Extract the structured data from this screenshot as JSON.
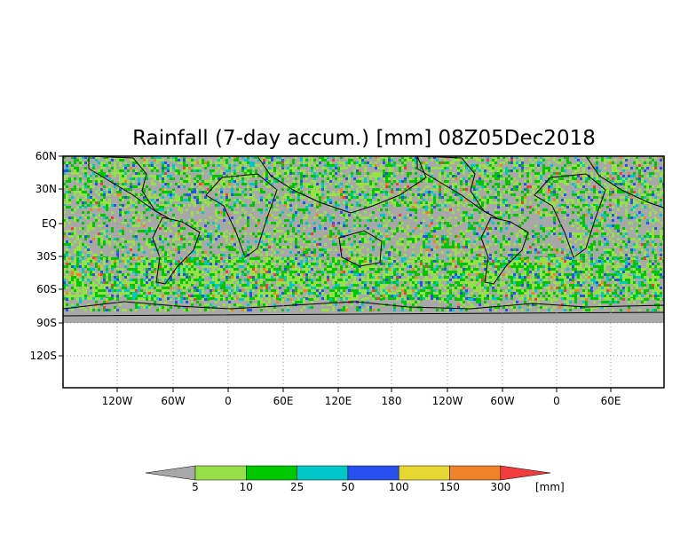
{
  "title": "Rainfall (7-day accum.) [mm] 08Z05Dec2018",
  "map": {
    "lat_ticks": [
      "60N",
      "30N",
      "EQ",
      "30S",
      "60S",
      "90S",
      "120S"
    ],
    "lon_ticks": [
      "120W",
      "60W",
      "0",
      "60E",
      "120E",
      "180",
      "120W",
      "60W",
      "0",
      "60E"
    ],
    "data_lat_range": [
      "60N",
      "90S"
    ],
    "plot_lat_range": [
      "60N",
      "150S"
    ],
    "gridlines": "dotted",
    "background_color": "#a8a8a8",
    "boundary_color": "#000000"
  },
  "colorbar": {
    "unit": "[mm]",
    "labels": [
      "5",
      "10",
      "25",
      "50",
      "100",
      "150",
      "300"
    ],
    "colors": [
      "#a8a8a8",
      "#98e048",
      "#00c800",
      "#00c8c8",
      "#2850f0",
      "#e6d830",
      "#f08228",
      "#f03c3c"
    ]
  },
  "chart_data": {
    "type": "heatmap",
    "title": "Rainfall (7-day accum.) [mm] 08Z05Dec2018",
    "variable": "Rainfall (7-day accum.)",
    "unit": "mm",
    "levels": [
      5,
      10,
      25,
      50,
      100,
      150,
      300
    ],
    "colors": [
      "#a8a8a8",
      "#98e048",
      "#00c800",
      "#00c8c8",
      "#2850f0",
      "#e6d830",
      "#f08228",
      "#f03c3c"
    ],
    "x_tick_labels": [
      "120W",
      "60W",
      "0",
      "60E",
      "120E",
      "180",
      "120W",
      "60W",
      "0",
      "60E"
    ],
    "y_tick_labels": [
      "60N",
      "30N",
      "EQ",
      "30S",
      "60S",
      "90S",
      "120S"
    ],
    "grid": true
  }
}
